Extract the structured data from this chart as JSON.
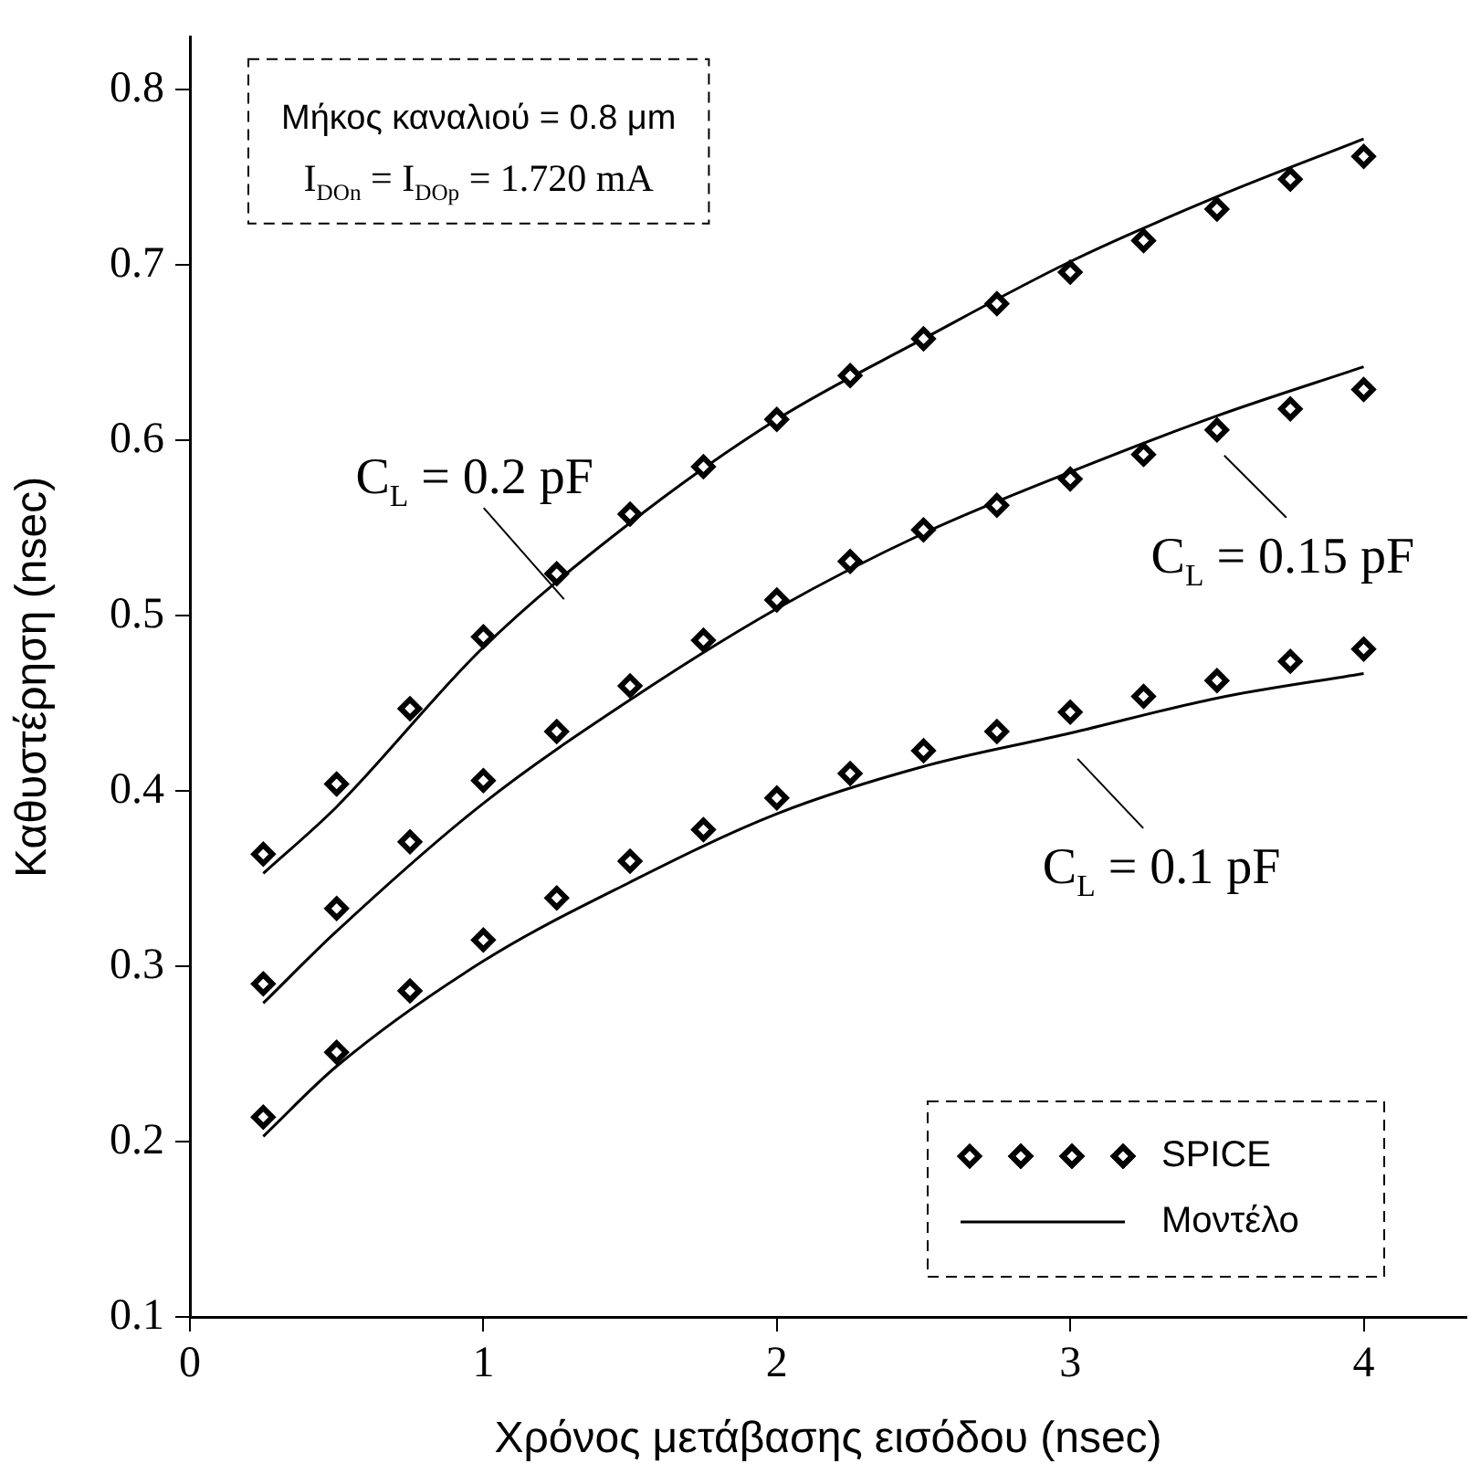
{
  "chart_data": {
    "type": "scatter",
    "xlabel": "Χρόνος μετάβασης εισόδου (nsec)",
    "ylabel": "Καθυστέρηση (nsec)",
    "xlim": [
      0,
      4.35
    ],
    "ylim": [
      0.1,
      0.83
    ],
    "xticks": [
      0,
      1,
      2,
      3,
      4
    ],
    "yticks": [
      0.1,
      0.2,
      0.3,
      0.4,
      0.5,
      0.6,
      0.7,
      0.8
    ],
    "grid": false,
    "legend": "bottom right",
    "annotations": [
      "Μήκος καναλιού = 0.8 μm",
      "I$_{DOn}$ = I$_{DOp}$ = 1.720 mA",
      {
        "text": "C$_{L}$ = 0.2 pF",
        "x": 1.25,
        "y": 0.524
      },
      {
        "text": "C$_{L}$ = 0.15 pF",
        "x": 3.5,
        "y": 0.606
      },
      {
        "text": "C$_{L}$ = 0.1 pF",
        "x": 3,
        "y": 0.433
      }
    ],
    "x": [
      0.25,
      0.5,
      0.75,
      1,
      1.25,
      1.5,
      1.75,
      2,
      2.25,
      2.5,
      2.75,
      3,
      3.25,
      3.5,
      3.75,
      4
    ],
    "series": [
      {
        "name": "SPICE",
        "marker": "diamond",
        "color": "#000000",
        "values": [
          0.364,
          0.404,
          0.447,
          0.488,
          0.524,
          0.558,
          0.585,
          0.612,
          0.637,
          0.658,
          0.678,
          0.696,
          0.714,
          0.732,
          0.749,
          0.762
        ]
      },
      {
        "marker": "diamond",
        "color": "#000000",
        "values": [
          0.29,
          0.333,
          0.371,
          0.406,
          0.434,
          0.46,
          0.486,
          0.509,
          0.531,
          0.549,
          0.563,
          0.578,
          0.592,
          0.606,
          0.618,
          0.629
        ]
      },
      {
        "marker": "diamond",
        "color": "#000000",
        "values": [
          0.214,
          0.251,
          0.286,
          0.315,
          0.339,
          0.36,
          0.378,
          0.396,
          0.41,
          0.423,
          0.434,
          0.445,
          0.454,
          0.463,
          0.474,
          0.481
        ]
      },
      {
        "name": "Μοντέλο",
        "type": "line",
        "marker": "none",
        "line_style": "solid",
        "color": "#000000",
        "x": [
          0.25,
          0.5,
          1,
          1.5,
          2,
          2.5,
          3,
          3.5,
          4
        ],
        "values": [
          0.353,
          0.391,
          0.482,
          0.553,
          0.612,
          0.658,
          0.702,
          0.739,
          0.772
        ]
      },
      {
        "type": "line",
        "marker": "none",
        "line_style": "solid",
        "color": "#000000",
        "x": [
          0.25,
          0.5,
          1,
          1.5,
          2,
          2.5,
          3,
          3.5,
          4
        ],
        "values": [
          0.279,
          0.32,
          0.393,
          0.452,
          0.504,
          0.547,
          0.582,
          0.614,
          0.642
        ]
      },
      {
        "type": "line",
        "marker": "none",
        "line_style": "solid",
        "color": "#000000",
        "x": [
          0.25,
          0.5,
          1,
          1.5,
          2,
          2.5,
          3,
          3.5,
          4
        ],
        "values": [
          0.203,
          0.243,
          0.303,
          0.348,
          0.387,
          0.414,
          0.433,
          0.453,
          0.467
        ]
      }
    ]
  }
}
